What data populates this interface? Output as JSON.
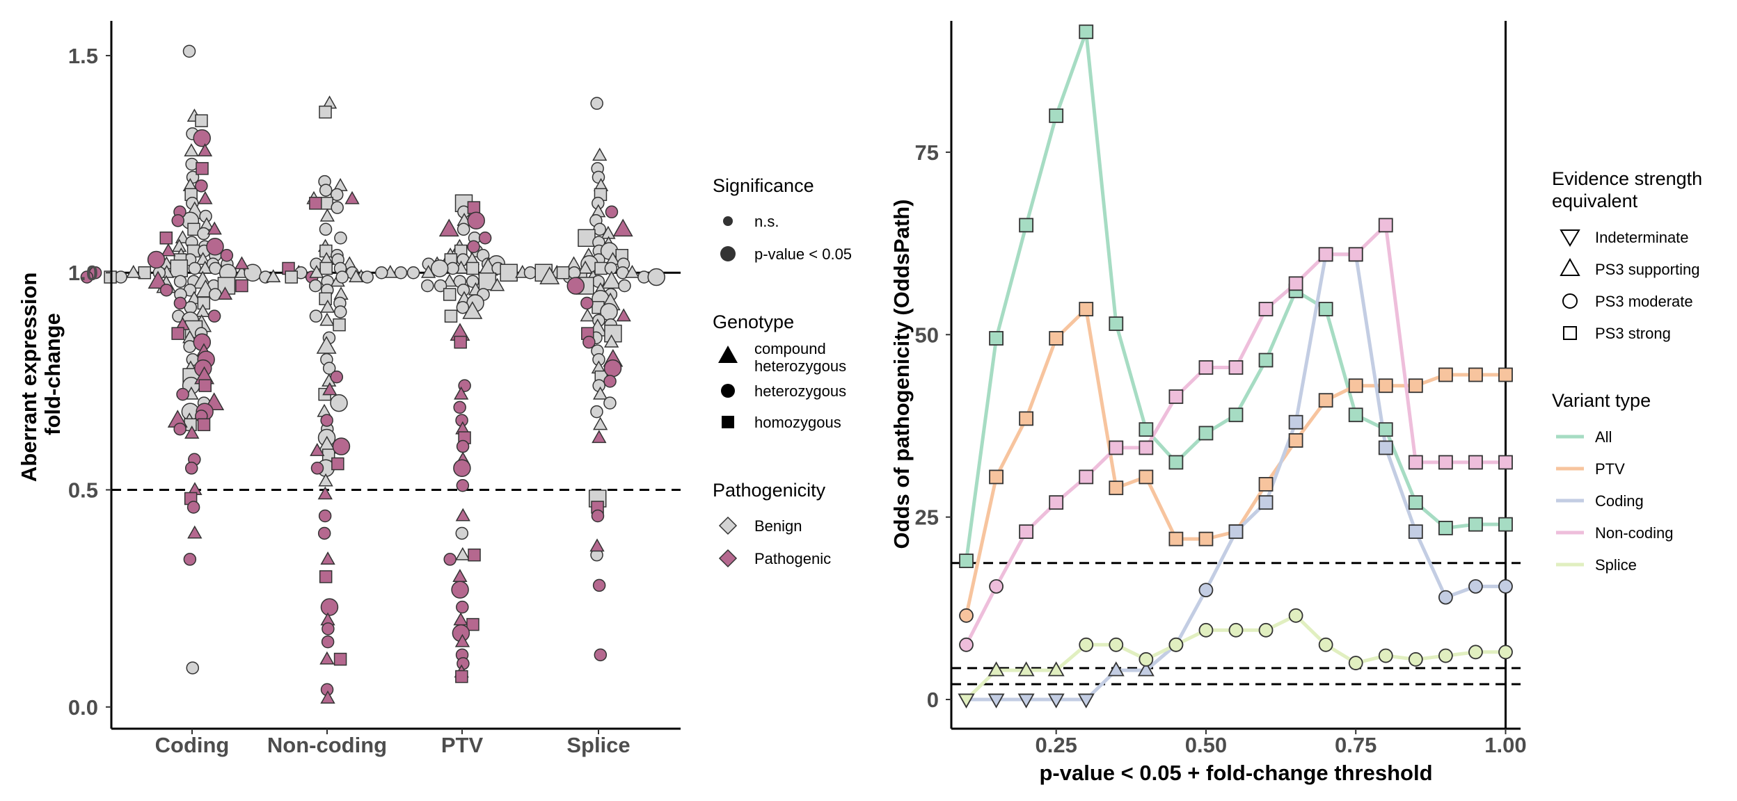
{
  "colors": {
    "benign": "#d3d3d3",
    "pathogenic": "#b5688f",
    "outline": "#333333",
    "All": "#a6dcc3",
    "PTV": "#f7c49e",
    "Coding": "#c3cde3",
    "Non-coding": "#eebedb",
    "Splice": "#e1efc0"
  },
  "chart_data": [
    {
      "type": "scatter",
      "panel": "left",
      "ylabel_lines": [
        "Aberrant expression",
        "fold-change"
      ],
      "xlabel": "",
      "categories": [
        "Coding",
        "Non-coding",
        "PTV",
        "Splice"
      ],
      "ylim": [
        -0.05,
        1.58
      ],
      "yticks": [
        "0.0",
        "0.5",
        "1.0",
        "1.5"
      ],
      "ytick_values": [
        0,
        0.5,
        1.0,
        1.5
      ],
      "reference_lines": [
        {
          "y": 1.0,
          "style": "solid"
        },
        {
          "y": 0.5,
          "style": "dashed"
        }
      ],
      "note": "beeswarm of individual samples; values approximate",
      "points": {
        "Coding": {
          "benign": [
            1.51,
            1.36,
            1.35,
            1.32,
            1.28,
            1.25,
            1.22,
            1.2,
            1.18,
            1.16,
            1.14,
            1.13,
            1.12,
            1.11,
            1.1,
            1.09,
            1.08,
            1.07,
            1.06,
            1.06,
            1.05,
            1.05,
            1.04,
            1.04,
            1.03,
            1.03,
            1.03,
            1.02,
            1.02,
            1.02,
            1.01,
            1.01,
            1.01,
            1.01,
            1.0,
            1.0,
            1.0,
            1.0,
            1.0,
            1.0,
            1.0,
            0.99,
            0.99,
            0.99,
            0.99,
            0.98,
            0.98,
            0.98,
            0.97,
            0.97,
            0.97,
            0.96,
            0.96,
            0.95,
            0.95,
            0.94,
            0.93,
            0.92,
            0.91,
            0.9,
            0.89,
            0.88,
            0.87,
            0.86,
            0.85,
            0.83,
            0.8,
            0.78,
            0.76,
            0.74,
            0.72,
            0.7,
            0.68,
            0.66,
            0.65,
            0.09
          ],
          "pathogenic": [
            1.31,
            1.28,
            1.24,
            1.2,
            1.17,
            1.14,
            1.12,
            1.1,
            1.08,
            1.06,
            1.05,
            1.04,
            1.03,
            1.02,
            1.01,
            1.0,
            1.0,
            0.99,
            0.99,
            0.98,
            0.97,
            0.96,
            0.95,
            0.93,
            0.9,
            0.88,
            0.86,
            0.84,
            0.82,
            0.8,
            0.78,
            0.76,
            0.74,
            0.72,
            0.7,
            0.68,
            0.67,
            0.66,
            0.65,
            0.64,
            0.63,
            0.57,
            0.55,
            0.5,
            0.48,
            0.46,
            0.4,
            0.34
          ]
        },
        "Non-coding": {
          "benign": [
            1.39,
            1.37,
            1.21,
            1.2,
            1.19,
            1.18,
            1.17,
            1.16,
            1.15,
            1.13,
            1.1,
            1.08,
            1.06,
            1.05,
            1.04,
            1.03,
            1.03,
            1.02,
            1.02,
            1.01,
            1.01,
            1.0,
            1.0,
            1.0,
            0.99,
            0.99,
            0.98,
            0.98,
            0.97,
            0.96,
            0.95,
            0.94,
            0.93,
            0.92,
            0.91,
            0.9,
            0.89,
            0.88,
            0.85,
            0.83,
            0.8,
            0.78,
            0.75,
            0.72,
            0.7,
            0.68,
            0.64,
            0.62,
            0.6,
            0.58,
            0.55,
            0.52
          ],
          "pathogenic": [
            1.17,
            1.16,
            0.76,
            0.73,
            0.66,
            0.6,
            0.59,
            0.56,
            0.55,
            0.49,
            0.44,
            0.4,
            0.34,
            0.3,
            0.23,
            0.2,
            0.18,
            0.15,
            0.11,
            0.11,
            0.04,
            0.02
          ]
        },
        "PTV": {
          "benign": [
            1.16,
            1.14,
            1.12,
            1.1,
            1.08,
            1.06,
            1.05,
            1.05,
            1.04,
            1.04,
            1.03,
            1.03,
            1.03,
            1.02,
            1.02,
            1.02,
            1.02,
            1.01,
            1.01,
            1.01,
            1.01,
            1.01,
            1.01,
            1.0,
            1.0,
            1.0,
            1.0,
            1.0,
            1.0,
            1.0,
            1.0,
            1.0,
            1.0,
            0.99,
            0.99,
            0.99,
            0.99,
            0.99,
            0.99,
            0.98,
            0.98,
            0.98,
            0.98,
            0.97,
            0.97,
            0.97,
            0.96,
            0.96,
            0.95,
            0.95,
            0.94,
            0.93,
            0.92,
            0.91,
            0.9,
            0.4,
            0.35
          ],
          "pathogenic": [
            1.15,
            1.12,
            1.1,
            1.08,
            1.06,
            0.86,
            0.84,
            0.74,
            0.72,
            0.69,
            0.66,
            0.64,
            0.62,
            0.6,
            0.57,
            0.55,
            0.51,
            0.44,
            0.35,
            0.34,
            0.3,
            0.27,
            0.23,
            0.2,
            0.19,
            0.17,
            0.15,
            0.12,
            0.1,
            0.08,
            0.07
          ]
        },
        "Splice": {
          "benign": [
            1.39,
            1.27,
            1.24,
            1.22,
            1.2,
            1.18,
            1.16,
            1.14,
            1.12,
            1.1,
            1.09,
            1.08,
            1.07,
            1.06,
            1.05,
            1.05,
            1.04,
            1.04,
            1.03,
            1.03,
            1.02,
            1.02,
            1.02,
            1.01,
            1.01,
            1.01,
            1.0,
            1.0,
            1.0,
            1.0,
            0.99,
            0.99,
            0.99,
            0.98,
            0.98,
            0.97,
            0.97,
            0.96,
            0.95,
            0.94,
            0.93,
            0.92,
            0.91,
            0.9,
            0.89,
            0.88,
            0.87,
            0.86,
            0.85,
            0.84,
            0.82,
            0.8,
            0.78,
            0.76,
            0.74,
            0.72,
            0.7,
            0.68,
            0.65,
            0.48,
            0.35
          ],
          "pathogenic": [
            1.14,
            1.1,
            0.97,
            0.93,
            0.9,
            0.86,
            0.84,
            0.8,
            0.78,
            0.75,
            0.62,
            0.46,
            0.44,
            0.37,
            0.28,
            0.12
          ]
        }
      }
    },
    {
      "type": "line",
      "panel": "right",
      "xlabel": "p-value < 0.05 + fold-change threshold",
      "ylabel": "Odds of pathogenicity (OddsPath)",
      "xlim": [
        0.075,
        1.025
      ],
      "ylim": [
        -4,
        93
      ],
      "xticks": [
        "0.25",
        "0.50",
        "0.75",
        "1.00"
      ],
      "xtick_values": [
        0.25,
        0.5,
        0.75,
        1.0
      ],
      "yticks": [
        "0",
        "25",
        "50",
        "75"
      ],
      "ytick_values": [
        0,
        25,
        50,
        75
      ],
      "reference_lines": [
        {
          "y": 18.7,
          "style": "dashed"
        },
        {
          "y": 4.3,
          "style": "dashed"
        },
        {
          "y": 2.1,
          "style": "dashed"
        },
        {
          "x": 1.0,
          "style": "solid"
        }
      ],
      "x": [
        0.1,
        0.15,
        0.2,
        0.25,
        0.3,
        0.35,
        0.4,
        0.45,
        0.5,
        0.55,
        0.6,
        0.65,
        0.7,
        0.75,
        0.8,
        0.85,
        0.9,
        0.95,
        1.0
      ],
      "series": [
        {
          "name": "All",
          "values": [
            19.0,
            49.5,
            65.0,
            80.0,
            91.5,
            51.5,
            37.0,
            32.5,
            36.5,
            39.0,
            46.5,
            56.0,
            53.5,
            39.0,
            37.0,
            27.0,
            23.5,
            24.0,
            24.0
          ],
          "shapes": [
            "square",
            "square",
            "square",
            "square",
            "square",
            "square",
            "square",
            "square",
            "square",
            "square",
            "square",
            "square",
            "square",
            "square",
            "square",
            "square",
            "square",
            "square",
            "square"
          ]
        },
        {
          "name": "PTV",
          "values": [
            11.5,
            30.5,
            38.5,
            49.5,
            53.5,
            29.0,
            30.5,
            22.0,
            22.0,
            23.0,
            29.5,
            35.5,
            41.0,
            43.0,
            43.0,
            43.0,
            44.5,
            44.5,
            44.5
          ],
          "shapes": [
            "circle",
            "square",
            "square",
            "square",
            "square",
            "square",
            "square",
            "square",
            "square",
            "square",
            "square",
            "square",
            "square",
            "square",
            "square",
            "square",
            "square",
            "square",
            "square"
          ]
        },
        {
          "name": "Coding",
          "values": [
            0,
            0,
            0,
            0,
            0,
            4.0,
            4.0,
            7.5,
            15.0,
            23.0,
            27.0,
            38.0,
            61.0,
            61.0,
            34.5,
            23.0,
            14.0,
            15.5,
            15.5
          ],
          "shapes": [
            "down",
            "down",
            "down",
            "down",
            "down",
            "up",
            "up",
            "circle",
            "circle",
            "square",
            "square",
            "square",
            "square",
            "square",
            "square",
            "square",
            "circle",
            "circle",
            "circle"
          ]
        },
        {
          "name": "Non-coding",
          "values": [
            7.5,
            15.5,
            23.0,
            27.0,
            30.5,
            34.5,
            34.5,
            41.5,
            45.5,
            45.5,
            53.5,
            57.0,
            61.0,
            61.0,
            65.0,
            32.5,
            32.5,
            32.5,
            32.5
          ],
          "shapes": [
            "circle",
            "circle",
            "square",
            "square",
            "square",
            "square",
            "square",
            "square",
            "square",
            "square",
            "square",
            "square",
            "square",
            "square",
            "square",
            "square",
            "square",
            "square",
            "square"
          ]
        },
        {
          "name": "Splice",
          "values": [
            0,
            4.0,
            4.0,
            4.0,
            7.5,
            7.5,
            5.5,
            7.5,
            9.5,
            9.5,
            9.5,
            11.5,
            7.5,
            5.0,
            6.0,
            5.5,
            6.0,
            6.5,
            6.5
          ],
          "shapes": [
            "down",
            "up",
            "up",
            "up",
            "circle",
            "circle",
            "circle",
            "circle",
            "circle",
            "circle",
            "circle",
            "circle",
            "circle",
            "circle",
            "circle",
            "circle",
            "circle",
            "circle",
            "circle"
          ]
        }
      ]
    }
  ],
  "legends": {
    "significance": {
      "title": "Significance",
      "items": [
        "n.s.",
        "p-value < 0.05"
      ]
    },
    "genotype": {
      "title": "Genotype",
      "items": [
        [
          "compound",
          "heterozygous"
        ],
        [
          "heterozygous"
        ],
        [
          "homozygous"
        ]
      ]
    },
    "pathogenicity": {
      "title": "Pathogenicity",
      "items": [
        "Benign",
        "Pathogenic"
      ]
    },
    "evidence": {
      "title_lines": [
        "Evidence strength",
        "equivalent"
      ],
      "items": [
        "Indeterminate",
        "PS3 supporting",
        "PS3 moderate",
        "PS3 strong"
      ]
    },
    "variant_type": {
      "title": "Variant type",
      "items": [
        "All",
        "PTV",
        "Coding",
        "Non-coding",
        "Splice"
      ]
    }
  }
}
